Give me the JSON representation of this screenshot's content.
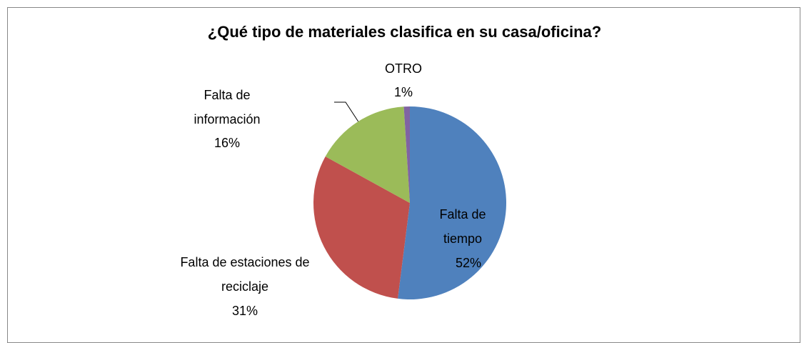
{
  "chart_data": {
    "type": "pie",
    "title": "¿Qué tipo de materiales clasifica en su casa/oficina?",
    "categories": [
      "Falta de tiempo",
      "Falta de estaciones de reciclaje",
      "Falta de información",
      "OTRO"
    ],
    "values": [
      52,
      31,
      16,
      1
    ],
    "value_labels": [
      "52%",
      "31%",
      "16%",
      "1%"
    ],
    "colors": [
      "#4f81bd",
      "#c0504d",
      "#9bbb59",
      "#8064a2"
    ]
  }
}
